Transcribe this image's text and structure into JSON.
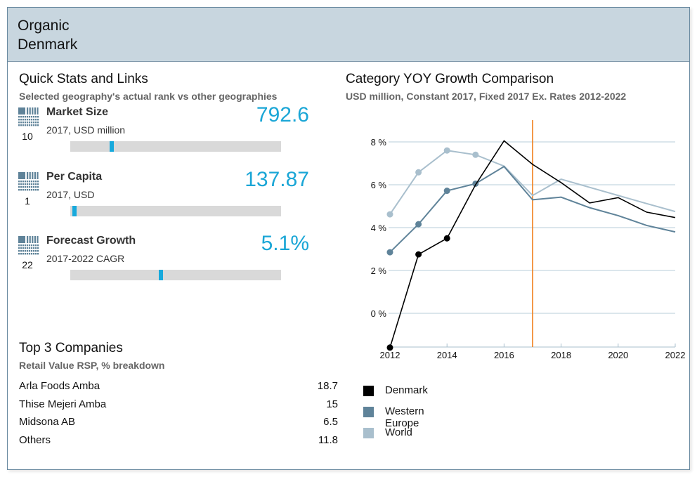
{
  "header": {
    "line1": "Organic",
    "line2": "Denmark"
  },
  "quick_stats": {
    "title": "Quick Stats and Links",
    "subtitle": "Selected geography's actual rank vs other geographies",
    "items": [
      {
        "icon": "rank-grid-icon",
        "rank": "10",
        "label": "Market Size",
        "sub": "2017, USD million",
        "value": "792.6",
        "bar_position": 0.19
      },
      {
        "icon": "rank-grid-icon",
        "rank": "1",
        "label": "Per Capita",
        "sub": "2017, USD",
        "value": "137.87",
        "bar_position": 0.01
      },
      {
        "icon": "rank-grid-icon",
        "rank": "22",
        "label": "Forecast Growth",
        "sub": "2017-2022 CAGR",
        "value": "5.1%",
        "bar_position": 0.43
      }
    ]
  },
  "companies": {
    "title": "Top 3 Companies",
    "subtitle": "Retail Value RSP, % breakdown",
    "rows": [
      {
        "name": "Arla Foods Amba",
        "value": "18.7"
      },
      {
        "name": "Thise Mejeri Amba",
        "value": "15"
      },
      {
        "name": "Midsona AB",
        "value": "6.5"
      },
      {
        "name": "Others",
        "value": "11.8"
      }
    ]
  },
  "chart": {
    "title": "Category YOY Growth Comparison",
    "subtitle": "USD million, Constant 2017, Fixed 2017 Ex. Rates 2012-2022"
  },
  "colors": {
    "accent": "#1aa6d6",
    "denmark": "#000000",
    "western_europe": "#5f8399",
    "world": "#a9bfcd",
    "forecast_marker": "#f07f1a"
  },
  "chart_data": {
    "type": "line",
    "title": "Category YOY Growth Comparison",
    "subtitle": "USD million, Constant 2017, Fixed 2017 Ex. Rates 2012-2022",
    "xlabel": "",
    "ylabel": "",
    "x": [
      2012,
      2013,
      2014,
      2015,
      2016,
      2017,
      2018,
      2019,
      2020,
      2021,
      2022
    ],
    "x_ticks": [
      "2012",
      "2014",
      "2016",
      "2018",
      "2020",
      "2022"
    ],
    "y_ticks": [
      "0 %",
      "2 %",
      "4 %",
      "6 %",
      "8 %"
    ],
    "y_tick_values": [
      0,
      2,
      4,
      6,
      8
    ],
    "ylim": [
      -1.6,
      9.0
    ],
    "xlim": [
      2012,
      2022
    ],
    "grid": true,
    "forecast_divider_x": 2017,
    "legend_position": "bottom-left",
    "series": [
      {
        "name": "Denmark",
        "color": "#000000",
        "marker_until": 2014,
        "values": [
          -1.6,
          2.75,
          3.5,
          6.0,
          8.05,
          6.95,
          6.1,
          5.15,
          5.4,
          4.72,
          4.47
        ]
      },
      {
        "name": "Western Europe",
        "color": "#5f8399",
        "marker_until": 2015,
        "values": [
          2.85,
          4.16,
          5.72,
          6.05,
          6.85,
          5.3,
          5.42,
          4.93,
          4.56,
          4.1,
          3.8
        ]
      },
      {
        "name": "World",
        "color": "#a9bfcd",
        "marker_until": 2015,
        "values": [
          4.62,
          6.58,
          7.6,
          7.4,
          6.87,
          5.5,
          6.26,
          5.88,
          5.5,
          5.12,
          4.75
        ]
      }
    ]
  }
}
